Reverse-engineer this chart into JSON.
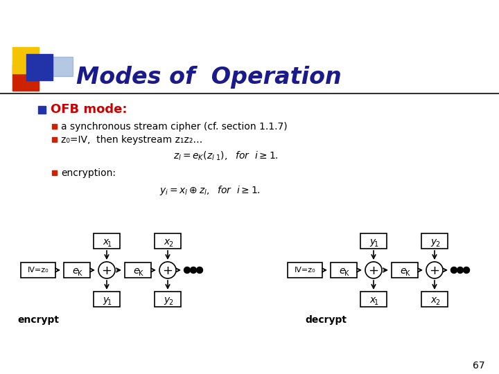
{
  "title": "Modes of  Operation",
  "title_color": "#1a1a8c",
  "slide_bg": "#ffffff",
  "heading": "OFB mode:",
  "heading_color": "#cc0000",
  "bullet1": "a synchronous stream cipher (cf. section 1.1.7)",
  "bullet2_plain": "z",
  "bullet3": "encryption:",
  "page_num": "67",
  "yellow_color": "#f5c400",
  "red_color": "#cc2200",
  "blue_color": "#2233aa",
  "lblue_color": "#7799cc"
}
